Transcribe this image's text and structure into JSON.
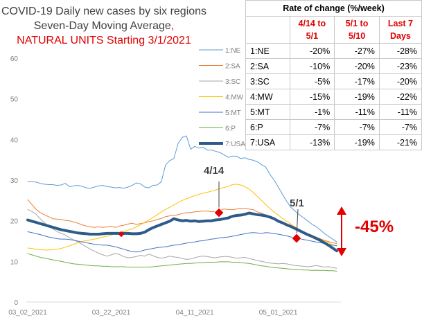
{
  "title": {
    "line1": "COVID-19 Daily new cases by six regions",
    "line2_a": "Seven-Day Moving Average",
    "line2_b": ",",
    "line3": "NATURAL UNITS Starting 3/1/2021"
  },
  "table": {
    "caption": "Rate of change (%/week)",
    "headers": [
      "",
      "4/14 to\n5/1",
      "5/1  to\n5/10",
      "Last 7\nDays"
    ],
    "rows": [
      [
        "1:NE",
        "-20%",
        "-27%",
        "-28%"
      ],
      [
        "2:SA",
        "-10%",
        "-20%",
        "-23%"
      ],
      [
        "3:SC",
        "-5%",
        "-17%",
        "-20%"
      ],
      [
        "4:MW",
        "-15%",
        "-19%",
        "-22%"
      ],
      [
        "5:MT",
        "-1%",
        "-11%",
        "-11%"
      ],
      [
        "6:P",
        "-7%",
        "-7%",
        "-7%"
      ],
      [
        "7:USA",
        "-13%",
        "-19%",
        "-21%"
      ]
    ],
    "highlight_color": "#e00000"
  },
  "annotations": {
    "mark_a": "4/14",
    "mark_b": "5/1",
    "drop": "-45%"
  },
  "chart_data": {
    "type": "line",
    "title": "",
    "xlabel": "",
    "ylabel": "",
    "ylim": [
      0,
      60
    ],
    "yticks": [
      0,
      10,
      20,
      30,
      40,
      50,
      60
    ],
    "xtick_labels": [
      "03_02_2021",
      "03_22_2021",
      "04_11_2021",
      "05_01_2021"
    ],
    "grid": false,
    "legend_position": "right",
    "x_start": "03_02_2021",
    "n_points": 75,
    "series": [
      {
        "name": "1:NE",
        "color": "#5b9bd5",
        "width": 1,
        "values": [
          29.6,
          29.6,
          29.5,
          29.2,
          29.0,
          28.9,
          28.9,
          28.7,
          28.8,
          29.2,
          28.4,
          28.6,
          28.7,
          28.5,
          28.1,
          28.0,
          28.3,
          28.6,
          28.7,
          28.4,
          28.3,
          28.1,
          28.2,
          28.0,
          28.3,
          28.7,
          29.3,
          29.1,
          28.3,
          28.1,
          28.7,
          28.8,
          29.6,
          33.7,
          34.8,
          35.3,
          39.0,
          40.5,
          40.9,
          37.6,
          38.3,
          37.9,
          38.1,
          37.4,
          37.4,
          37.1,
          36.8,
          36.2,
          35.6,
          35.9,
          35.9,
          35.3,
          35.5,
          35.1,
          34.9,
          34.5,
          33.8,
          33.2,
          31.4,
          30.0,
          28.3,
          26.5,
          24.8,
          23.3,
          22.4,
          21.5,
          20.8,
          20.0,
          19.2,
          18.6,
          17.8,
          16.9,
          16.2,
          15.5,
          14.8
        ]
      },
      {
        "name": "2:SA",
        "color": "#ed7d31",
        "width": 1,
        "values": [
          25.2,
          24.0,
          22.8,
          22.0,
          21.5,
          21.0,
          20.5,
          20.4,
          20.3,
          20.1,
          20.0,
          19.7,
          19.4,
          19.0,
          18.7,
          18.5,
          18.4,
          18.5,
          18.4,
          18.5,
          18.6,
          18.4,
          18.7,
          18.9,
          19.2,
          19.4,
          19.1,
          19.3,
          19.5,
          19.8,
          20.0,
          20.3,
          20.6,
          21.0,
          21.2,
          21.3,
          21.5,
          21.8,
          22.0,
          22.0,
          22.2,
          22.3,
          22.4,
          22.4,
          22.2,
          22.3,
          22.6,
          22.9,
          22.8,
          22.7,
          22.9,
          23.1,
          23.0,
          22.9,
          22.7,
          22.2,
          21.9,
          21.4,
          20.9,
          20.5,
          20.0,
          19.6,
          19.1,
          18.6,
          18.2,
          17.7,
          17.2,
          16.8,
          16.4,
          16.0,
          15.6,
          15.2,
          14.9,
          14.6,
          14.4
        ]
      },
      {
        "name": "3:SC",
        "color": "#a5a5a5",
        "width": 1,
        "values": [
          22.8,
          22.3,
          21.6,
          20.5,
          19.5,
          18.8,
          18.0,
          17.4,
          16.9,
          16.5,
          15.8,
          15.3,
          14.8,
          14.2,
          13.6,
          13.0,
          12.5,
          12.0,
          11.6,
          11.3,
          11.6,
          12.0,
          11.7,
          11.2,
          10.9,
          11.0,
          11.2,
          11.5,
          11.3,
          11.8,
          11.4,
          11.0,
          10.8,
          11.0,
          11.3,
          11.1,
          11.0,
          10.7,
          10.5,
          10.6,
          10.9,
          11.2,
          11.3,
          11.2,
          11.0,
          10.9,
          11.1,
          11.2,
          11.2,
          11.0,
          10.8,
          10.9,
          11.0,
          10.7,
          10.5,
          10.2,
          10.0,
          9.8,
          9.6,
          9.5,
          9.4,
          9.5,
          9.4,
          9.2,
          9.0,
          8.9,
          8.8,
          8.7,
          8.8,
          9.0,
          8.8,
          8.6,
          8.7,
          8.5,
          8.3
        ]
      },
      {
        "name": "4:MW",
        "color": "#ffc000",
        "width": 1,
        "values": [
          13.3,
          13.2,
          13.0,
          12.9,
          12.8,
          12.8,
          12.9,
          13.0,
          13.2,
          13.5,
          13.8,
          14.2,
          14.6,
          14.9,
          15.1,
          15.3,
          15.5,
          15.7,
          16.0,
          16.2,
          16.5,
          16.8,
          17.1,
          17.4,
          17.7,
          18.0,
          18.5,
          19.0,
          19.6,
          20.2,
          20.8,
          21.5,
          22.2,
          22.8,
          23.3,
          23.9,
          24.5,
          25.0,
          25.4,
          25.8,
          26.2,
          26.5,
          26.8,
          27.0,
          27.3,
          27.6,
          27.9,
          28.2,
          28.5,
          28.9,
          29.0,
          28.8,
          28.4,
          27.8,
          27.0,
          26.0,
          25.0,
          24.0,
          23.0,
          22.2,
          21.4,
          20.6,
          19.9,
          19.2,
          18.5,
          17.9,
          17.3,
          16.8,
          16.3,
          15.9,
          15.5,
          15.1,
          14.6,
          14.1,
          13.8
        ]
      },
      {
        "name": "5:MT",
        "color": "#4472c4",
        "width": 1,
        "values": [
          17.3,
          17.1,
          16.8,
          16.6,
          16.3,
          16.0,
          15.8,
          15.6,
          15.5,
          15.5,
          15.4,
          15.2,
          15.0,
          14.8,
          14.6,
          14.4,
          14.2,
          14.1,
          14.0,
          14.0,
          13.8,
          13.6,
          13.3,
          13.0,
          12.7,
          12.4,
          12.3,
          12.5,
          12.8,
          13.0,
          13.2,
          13.4,
          13.5,
          13.6,
          13.8,
          14.0,
          14.1,
          14.3,
          14.5,
          14.6,
          14.8,
          15.0,
          15.1,
          15.3,
          15.5,
          15.6,
          15.8,
          15.9,
          16.0,
          16.2,
          16.4,
          16.6,
          16.8,
          17.0,
          17.1,
          17.0,
          16.9,
          17.1,
          17.0,
          16.8,
          16.7,
          16.5,
          16.3,
          16.0,
          15.8,
          15.6,
          15.4,
          15.2,
          15.0,
          14.8,
          14.6,
          14.4,
          14.2,
          14.0,
          13.9
        ]
      },
      {
        "name": "6:P",
        "color": "#70ad47",
        "width": 1,
        "values": [
          11.9,
          11.6,
          11.3,
          11.0,
          10.8,
          10.6,
          10.4,
          10.2,
          10.0,
          9.8,
          9.6,
          9.4,
          9.3,
          9.2,
          9.1,
          9.0,
          8.9,
          8.9,
          8.8,
          8.8,
          8.7,
          8.7,
          8.7,
          8.7,
          8.6,
          8.6,
          8.6,
          8.6,
          8.6,
          8.6,
          8.7,
          8.8,
          8.9,
          9.0,
          9.1,
          9.2,
          9.3,
          9.4,
          9.5,
          9.5,
          9.6,
          9.7,
          9.7,
          9.8,
          9.8,
          9.8,
          9.9,
          9.9,
          9.9,
          9.8,
          9.8,
          9.7,
          9.6,
          9.5,
          9.3,
          9.1,
          8.9,
          8.8,
          8.6,
          8.5,
          8.4,
          8.3,
          8.2,
          8.1,
          8.0,
          8.0,
          7.9,
          7.9,
          7.8,
          7.8,
          7.8,
          7.8,
          7.7,
          7.7,
          7.6
        ]
      },
      {
        "name": "7:USA",
        "color": "#2e5c8a",
        "width": 4,
        "values": [
          20.2,
          19.9,
          19.6,
          19.3,
          19.0,
          18.7,
          18.4,
          18.1,
          17.8,
          17.6,
          17.4,
          17.2,
          17.0,
          16.9,
          16.8,
          16.7,
          16.7,
          16.7,
          16.8,
          16.9,
          16.9,
          16.9,
          16.9,
          16.9,
          16.9,
          16.8,
          16.8,
          16.9,
          17.2,
          17.8,
          18.3,
          18.7,
          19.1,
          19.5,
          19.9,
          20.5,
          20.2,
          20.0,
          20.1,
          19.9,
          20.0,
          19.8,
          19.9,
          20.0,
          20.0,
          20.2,
          20.3,
          20.5,
          20.7,
          21.1,
          21.3,
          21.4,
          21.6,
          21.9,
          21.7,
          21.5,
          21.4,
          21.2,
          20.9,
          20.5,
          19.9,
          19.5,
          19.0,
          18.6,
          18.1,
          17.6,
          17.1,
          16.6,
          16.2,
          15.7,
          15.2,
          14.6,
          14.0,
          13.3,
          12.6
        ]
      }
    ]
  }
}
